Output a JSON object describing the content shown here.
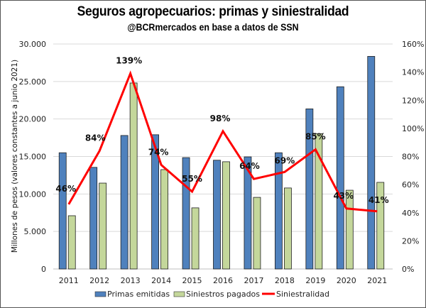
{
  "chart_data": {
    "type": "bar",
    "title": "Seguros agropecuarios: primas y siniestralidad",
    "subtitle": "@BCRmercados en base a datos de SSN",
    "xlabel": "",
    "ylabel": "Millones de pesos (valores constantes a junio 2021)",
    "y2label": "",
    "categories": [
      "2011",
      "2012",
      "2013",
      "2014",
      "2015",
      "2016",
      "2017",
      "2018",
      "2019",
      "2020",
      "2021"
    ],
    "series": [
      {
        "name": "Primas emitidas",
        "type": "bar",
        "axis": "left",
        "color": "#4F81BD",
        "values": [
          15500,
          13550,
          17800,
          17900,
          14850,
          14500,
          14950,
          15500,
          21350,
          24300,
          28350
        ]
      },
      {
        "name": "Siniestros pagados",
        "type": "bar",
        "axis": "left",
        "color": "#C4D79B",
        "values": [
          7100,
          11450,
          24800,
          13250,
          8150,
          14300,
          9550,
          10800,
          18050,
          10500,
          11550
        ]
      },
      {
        "name": "Siniestralidad",
        "type": "line",
        "axis": "right",
        "color": "#FF0000",
        "values": [
          46,
          84,
          139,
          74,
          55,
          98,
          64,
          69,
          85,
          43,
          41
        ],
        "labels": [
          "46%",
          "84%",
          "139%",
          "74%",
          "55%",
          "98%",
          "64%",
          "69%",
          "85%",
          "43%",
          "41%"
        ]
      }
    ],
    "ylim": [
      0,
      30000
    ],
    "yticks": [
      "0",
      "5.000",
      "10.000",
      "15.000",
      "20.000",
      "25.000",
      "30.000"
    ],
    "y2lim": [
      0,
      160
    ],
    "y2ticks": [
      "0%",
      "20%",
      "40%",
      "60%",
      "80%",
      "100%",
      "120%",
      "140%",
      "160%"
    ],
    "grid": true,
    "legend_position": "bottom"
  }
}
